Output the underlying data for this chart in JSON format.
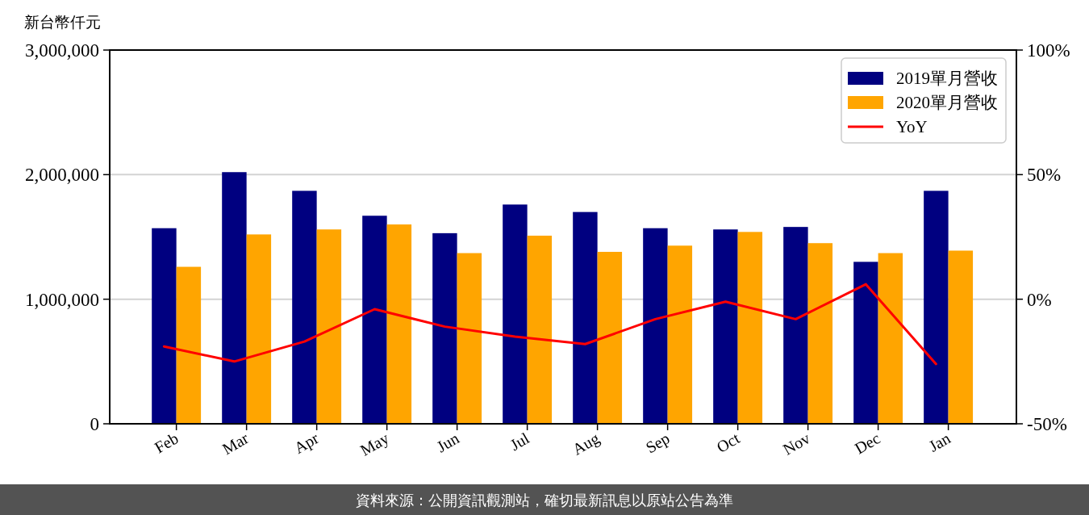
{
  "chart_data": {
    "type": "bar",
    "ylabel": "新台幣仟元",
    "categories": [
      "Feb",
      "Mar",
      "Apr",
      "May",
      "Jun",
      "Jul",
      "Aug",
      "Sep",
      "Oct",
      "Nov",
      "Dec",
      "Jan"
    ],
    "series": [
      {
        "name": "2019單月營收",
        "color": "#000080",
        "values": [
          1570000,
          2020000,
          1870000,
          1670000,
          1530000,
          1760000,
          1700000,
          1570000,
          1560000,
          1580000,
          1300000,
          1870000
        ]
      },
      {
        "name": "2020單月營收",
        "color": "#ffa500",
        "values": [
          1260000,
          1520000,
          1560000,
          1600000,
          1370000,
          1510000,
          1380000,
          1430000,
          1540000,
          1450000,
          1370000,
          1390000
        ]
      },
      {
        "name": "YoY",
        "type": "line",
        "axis": "y2",
        "color": "#ff0000",
        "values": [
          -19,
          -25,
          -17,
          -4,
          -11,
          -15,
          -18,
          -8,
          -1,
          -8,
          6,
          -26
        ]
      }
    ],
    "ylim": [
      0,
      3000000
    ],
    "yticks": [
      0,
      {
        "value": 1000000,
        "label": "1,000,000"
      },
      {
        "value": 2000000,
        "label": "2,000,000"
      },
      {
        "value": 3000000,
        "label": "3,000,000"
      }
    ],
    "y2lim": [
      -50,
      100
    ],
    "y2ticks": [
      {
        "value": -50,
        "label": "-50%"
      },
      {
        "value": 0,
        "label": "0%"
      },
      {
        "value": 50,
        "label": "50%"
      },
      {
        "value": 100,
        "label": "100%"
      }
    ],
    "grid": "y",
    "legend": "top right",
    "line_style": "solid",
    "annotations": [
      "資料來源：公開資訊觀測站，確切最新訊息以原站公告為準"
    ]
  }
}
